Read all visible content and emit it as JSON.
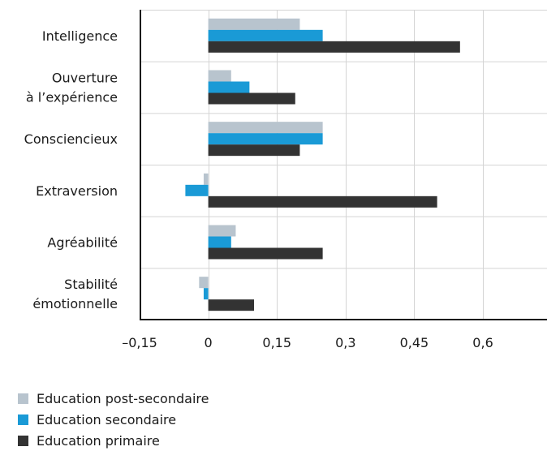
{
  "chart_data": {
    "type": "bar",
    "orientation": "horizontal",
    "categories": [
      [
        "Intelligence"
      ],
      [
        "Ouverture",
        "à l’expérience"
      ],
      [
        "Consciencieux"
      ],
      [
        "Extraversion"
      ],
      [
        "Agréabilité"
      ],
      [
        "Stabilité",
        "émotionnelle"
      ]
    ],
    "series": [
      {
        "name": "Education post-secondaire",
        "color": "#b8c4ce",
        "values": [
          0.2,
          0.05,
          0.25,
          -0.01,
          0.06,
          -0.02
        ]
      },
      {
        "name": "Education secondaire",
        "color": "#1a9ad6",
        "values": [
          0.25,
          0.09,
          0.25,
          -0.05,
          0.05,
          -0.01
        ]
      },
      {
        "name": "Education primaire",
        "color": "#333333",
        "values": [
          0.55,
          0.19,
          0.2,
          0.5,
          0.25,
          0.1
        ]
      }
    ],
    "xlim": [
      -0.15,
      0.74
    ],
    "xticks": [
      -0.15,
      0,
      0.15,
      0.3,
      0.45,
      0.6
    ],
    "xtick_labels": [
      "–0,15",
      "0",
      "0,15",
      "0,3",
      "0,45",
      "0,6"
    ],
    "grid": true,
    "legend_position": "bottom-left"
  }
}
